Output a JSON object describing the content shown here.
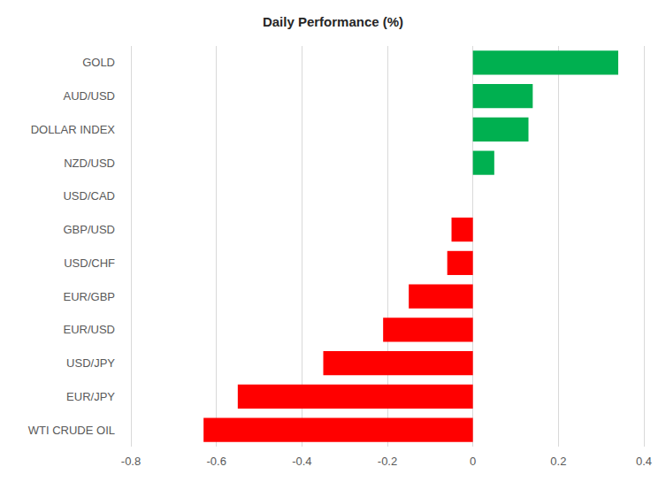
{
  "chart_data": {
    "type": "bar",
    "title": "Daily Performance (%)",
    "orientation": "horizontal",
    "categories": [
      "GOLD",
      "AUD/USD",
      "DOLLAR INDEX",
      "NZD/USD",
      "USD/CAD",
      "GBP/USD",
      "USD/CHF",
      "EUR/GBP",
      "EUR/USD",
      "USD/JPY",
      "EUR/JPY",
      "WTI CRUDE OIL"
    ],
    "values": [
      0.34,
      0.14,
      0.13,
      0.05,
      0,
      -0.05,
      -0.06,
      -0.15,
      -0.21,
      -0.35,
      -0.55,
      -0.63
    ],
    "colors": [
      "#00b050",
      "#00b050",
      "#00b050",
      "#00b050",
      "#00b050",
      "#ff0000",
      "#ff0000",
      "#ff0000",
      "#ff0000",
      "#ff0000",
      "#ff0000",
      "#ff0000"
    ],
    "xlim": [
      -0.8,
      0.4
    ],
    "xticks": [
      -0.8,
      -0.6,
      -0.4,
      -0.2,
      0,
      0.2,
      0.4
    ],
    "grid": true
  }
}
